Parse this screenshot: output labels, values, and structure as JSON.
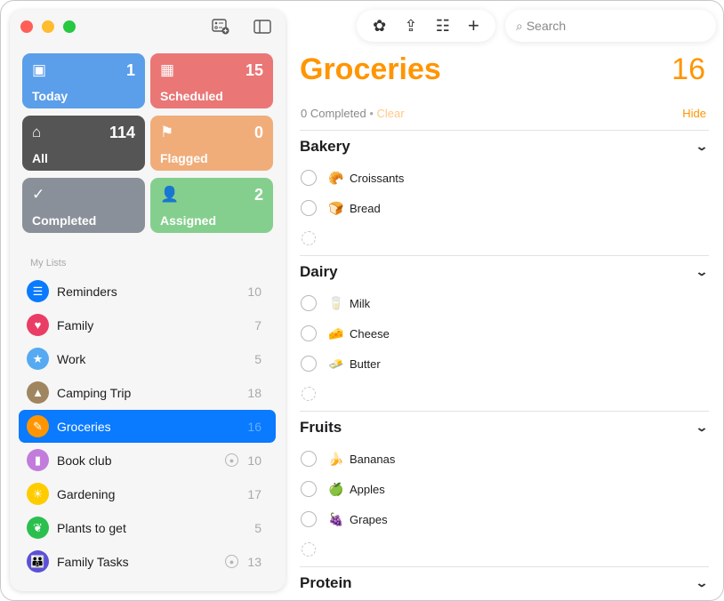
{
  "sidebar": {
    "tiles": [
      {
        "label": "Today",
        "count": "1",
        "icon": "calendar-today-icon",
        "color": "#5b9ee9"
      },
      {
        "label": "Scheduled",
        "count": "15",
        "icon": "calendar-grid-icon",
        "color": "#ea7676"
      },
      {
        "label": "All",
        "count": "114",
        "icon": "tray-icon",
        "color": "#555555"
      },
      {
        "label": "Flagged",
        "count": "0",
        "icon": "flag-icon",
        "color": "#f0ad7a"
      },
      {
        "label": "Completed",
        "count": "",
        "icon": "checkmark-icon",
        "color": "#8a9099"
      },
      {
        "label": "Assigned",
        "count": "2",
        "icon": "person-icon",
        "color": "#85cf8e"
      }
    ],
    "section_title": "My Lists",
    "lists": [
      {
        "name": "Reminders",
        "count": "10",
        "color": "#0a7aff",
        "icon": "list-icon",
        "glyph": "☰",
        "shared": false
      },
      {
        "name": "Family",
        "count": "7",
        "color": "#ea3d66",
        "icon": "heart-icon",
        "glyph": "♥",
        "shared": false
      },
      {
        "name": "Work",
        "count": "5",
        "color": "#55aaf2",
        "icon": "star-icon",
        "glyph": "★",
        "shared": false
      },
      {
        "name": "Camping Trip",
        "count": "18",
        "color": "#a08660",
        "icon": "tent-icon",
        "glyph": "▲",
        "shared": false
      },
      {
        "name": "Groceries",
        "count": "16",
        "color": "#ff9500",
        "icon": "carrot-icon",
        "glyph": "✎",
        "shared": false,
        "selected": true
      },
      {
        "name": "Book club",
        "count": "10",
        "color": "#c27ddc",
        "icon": "bookmark-icon",
        "glyph": "▮",
        "shared": true
      },
      {
        "name": "Gardening",
        "count": "17",
        "color": "#ffcc00",
        "icon": "sun-icon",
        "glyph": "☀",
        "shared": false
      },
      {
        "name": "Plants to get",
        "count": "5",
        "color": "#2bbf4e",
        "icon": "leaf-icon",
        "glyph": "❦",
        "shared": false
      },
      {
        "name": "Family Tasks",
        "count": "13",
        "color": "#5b50d6",
        "icon": "people-icon",
        "glyph": "👪",
        "shared": true
      }
    ]
  },
  "toolbar": {
    "search_placeholder": "Search"
  },
  "main": {
    "title": "Groceries",
    "count": "16",
    "completed": "0 Completed",
    "clear": "Clear",
    "hide": "Hide",
    "sections": [
      {
        "name": "Bakery",
        "items": [
          {
            "emoji": "🥐",
            "text": "Croissants"
          },
          {
            "emoji": "🍞",
            "text": "Bread"
          }
        ]
      },
      {
        "name": "Dairy",
        "items": [
          {
            "emoji": "🥛",
            "text": "Milk"
          },
          {
            "emoji": "🧀",
            "text": "Cheese"
          },
          {
            "emoji": "🧈",
            "text": "Butter"
          }
        ]
      },
      {
        "name": "Fruits",
        "items": [
          {
            "emoji": "🍌",
            "text": "Bananas"
          },
          {
            "emoji": "🍏",
            "text": "Apples"
          },
          {
            "emoji": "🍇",
            "text": "Grapes"
          }
        ]
      },
      {
        "name": "Protein",
        "items": []
      }
    ]
  }
}
